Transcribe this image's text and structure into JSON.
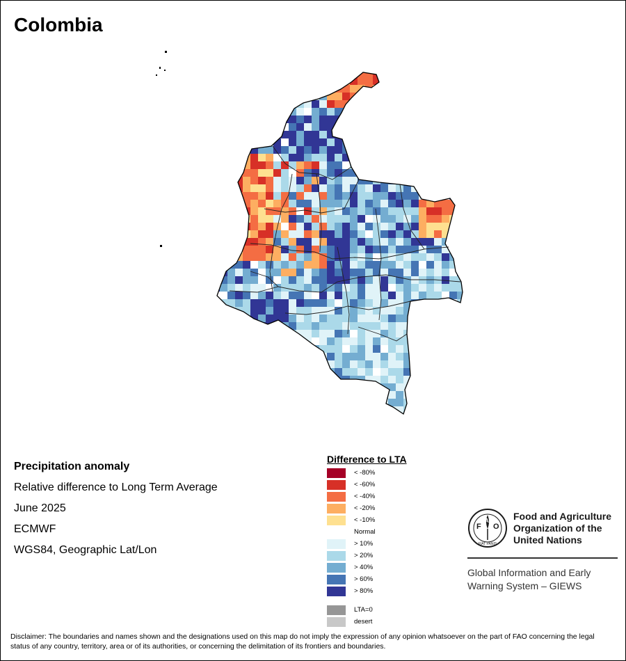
{
  "map": {
    "title": "Colombia"
  },
  "info": {
    "heading": "Precipitation anomaly",
    "line1": "Relative difference to Long Term Average",
    "line2": "June 2025",
    "line3": "ECMWF",
    "line4": "WGS84, Geographic Lat/Lon"
  },
  "legend": {
    "title": "Difference to LTA",
    "items": [
      {
        "label": "< -80%",
        "color": "#a50026"
      },
      {
        "label": "< -60%",
        "color": "#d73027"
      },
      {
        "label": "< -40%",
        "color": "#f46d43"
      },
      {
        "label": "< -20%",
        "color": "#fdae61"
      },
      {
        "label": "< -10%",
        "color": "#fee090"
      },
      {
        "label": "Normal",
        "color": "#ffffff"
      },
      {
        "label": "> 10%",
        "color": "#e0f3f8"
      },
      {
        "label": "> 20%",
        "color": "#abd9e9"
      },
      {
        "label": "> 40%",
        "color": "#74add1"
      },
      {
        "label": "> 60%",
        "color": "#4575b4"
      },
      {
        "label": "> 80%",
        "color": "#313695"
      }
    ],
    "extra": [
      {
        "label": "LTA=0",
        "color": "#969696"
      },
      {
        "label": "desert",
        "color": "#c8c8c8"
      }
    ]
  },
  "logo": {
    "org_name": "Food and Agriculture Organization of the United Nations",
    "emblem_letters": "FAO",
    "emblem_motto": "FIAT PANIS",
    "system_name": "Global Information and Early Warning System – GIEWS"
  },
  "disclaimer": "Disclaimer: The boundaries and names shown and the designations used on this map do not imply the expression of any opinion whatsoever on the part of FAO concerning the legal status of any country, territory, area or of its authorities, or concerning the delimitation of its frontiers and boundaries."
}
